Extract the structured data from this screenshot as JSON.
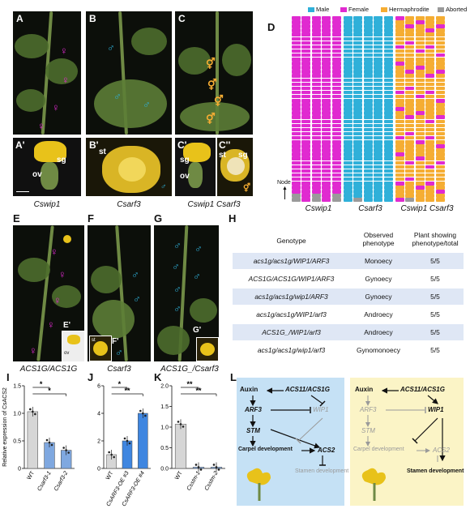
{
  "panels": {
    "A": "A",
    "B": "B",
    "C": "C",
    "D": "D",
    "A_prime": "A'",
    "B_prime": "B'",
    "C_prime": "C'",
    "C_dprime": "C''",
    "E": "E",
    "F": "F",
    "G": "G",
    "H": "H",
    "I": "I",
    "J": "J",
    "K": "K",
    "L": "L",
    "E_prime": "E'",
    "F_prime": "F'",
    "G_prime": "G'"
  },
  "symbols": {
    "female": "♀",
    "male": "♂",
    "herm": "⚥"
  },
  "photo_text": {
    "sg": "sg",
    "ov": "ov",
    "st": "st",
    "sg2": "sg",
    "ov2": "ov",
    "st2": "st",
    "sg3": "sg",
    "ov3": "ov",
    "st3": "st"
  },
  "captions_row1": {
    "a": "Cswip1",
    "b": "Csarf3",
    "c": "Cswip1 Csarf3"
  },
  "captions_row2": {
    "e": "ACS1G/ACS1G",
    "f": "Csarf3",
    "g": "ACS1G_/Csarf3"
  },
  "panel_d": {
    "legend": [
      {
        "label": "Male",
        "color": "#2fb0d9"
      },
      {
        "label": "Female",
        "color": "#e02ad0"
      },
      {
        "label": "Hermaphrodite",
        "color": "#f5ad33"
      },
      {
        "label": "Aborted",
        "color": "#9a9a9a"
      }
    ],
    "node_label": "Node",
    "group_labels": [
      "Cswip1",
      "Csarf3",
      "Cswip1 Csarf3"
    ]
  },
  "table_h": {
    "headers": [
      "Genotype",
      "Observed phenotype",
      "Plant showing phenotype/total"
    ],
    "rows": [
      {
        "genotype": "acs1g/acs1g/WIP1/ARF3",
        "phenotype": "Monoecy",
        "count": "5/5"
      },
      {
        "genotype": "ACS1G/ACS1G/WIP1/ARF3",
        "phenotype": "Gynoecy",
        "count": "5/5"
      },
      {
        "genotype": "acs1g/acs1g/wip1/ARF3",
        "phenotype": "Gynoecy",
        "count": "5/5"
      },
      {
        "genotype": "acs1g/acs1g/WIP1/arf3",
        "phenotype": "Androecy",
        "count": "5/5"
      },
      {
        "genotype": "ACS1G_/WIP1/arf3",
        "phenotype": "Androecy",
        "count": "5/5"
      },
      {
        "genotype": "acs1g/acs1g/wip1/arf3",
        "phenotype": "Gynomonoecy",
        "count": "5/5"
      }
    ]
  },
  "chart_data": [
    {
      "type": "bar",
      "panel": "I",
      "ylabel": "Relative expression of CsACS2",
      "categories": [
        "WT",
        "Csarf3-1",
        "Csarf3-2"
      ],
      "values": [
        1.03,
        0.47,
        0.33
      ],
      "ylim": [
        0,
        1.5
      ],
      "yticks": [
        "0",
        "0.5",
        "1.0",
        "1.5"
      ],
      "significance": [
        "*",
        "*"
      ],
      "colors": [
        "#d6d6d6",
        "#7fa8e0",
        "#7fa8e0"
      ]
    },
    {
      "type": "bar",
      "panel": "J",
      "categories": [
        "WT",
        "CsARF3-OE #3",
        "CsARF3-OE #4"
      ],
      "values": [
        1.0,
        2.0,
        4.0
      ],
      "ylim": [
        0,
        6
      ],
      "yticks": [
        "0",
        "2",
        "4",
        "6"
      ],
      "significance": [
        "*",
        "**"
      ],
      "colors": [
        "#d6d6d6",
        "#3f86e0",
        "#3f86e0"
      ]
    },
    {
      "type": "bar",
      "panel": "K",
      "categories": [
        "WT",
        "Csstm-1",
        "Csstm-2"
      ],
      "values": [
        1.07,
        0.03,
        0.03
      ],
      "ylim": [
        0,
        2.0
      ],
      "yticks": [
        "0.0",
        "0.5",
        "1.0",
        "1.5",
        "2.0"
      ],
      "significance": [
        "**",
        "**"
      ],
      "colors": [
        "#d6d6d6",
        "#7fa8e0",
        "#7fa8e0"
      ]
    }
  ],
  "diagram_l": {
    "left": {
      "auxin": "Auxin",
      "acs": "ACS11/ACS1G",
      "arf3": "ARF3",
      "wip1": "WIP1",
      "stm": "STM",
      "carpel": "Carpel development",
      "acs2": "ACS2",
      "stamen": "Stamen development",
      "bg": "#c5e1f5"
    },
    "right": {
      "auxin": "Auxin",
      "acs": "ACS11/ACS1G",
      "arf3": "ARF3",
      "wip1": "WIP1",
      "stm": "STM",
      "carpel": "Carpel development",
      "acs2": "ACS2",
      "stamen": "Stamen development",
      "bg": "#fbf4c6"
    }
  }
}
